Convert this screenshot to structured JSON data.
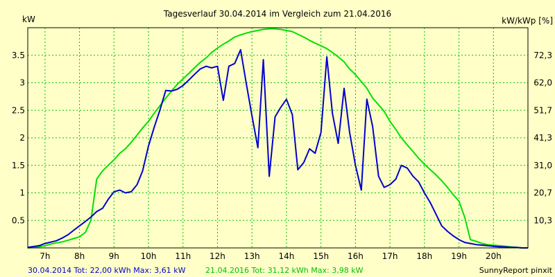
{
  "chart_data": {
    "type": "line",
    "title": "Tagesverlauf 30.04.2014 im Vergleich zum 21.04.2016",
    "ylabel_left": "kW",
    "ylabel_right": "kW/kWp [%]",
    "xlim": [
      6.5,
      21.0
    ],
    "ylim": [
      0,
      4.0
    ],
    "x_ticks": [
      7,
      8,
      9,
      10,
      11,
      12,
      13,
      14,
      15,
      16,
      17,
      18,
      19,
      20
    ],
    "x_tick_labels": [
      "7h",
      "8h",
      "9h",
      "10h",
      "11h",
      "12h",
      "13h",
      "14h",
      "15h",
      "16h",
      "17h",
      "18h",
      "19h",
      "20h"
    ],
    "y_ticks": [
      0.5,
      1,
      1.5,
      2,
      2.5,
      3,
      3.5
    ],
    "y_tick_labels": [
      "0.5",
      "1",
      "1.5",
      "2",
      "2.5",
      "3",
      "3.5"
    ],
    "y_right_ticks": [
      0.5,
      1,
      1.5,
      2,
      2.5,
      3,
      3.5
    ],
    "y_right_tick_labels": [
      "10,3",
      "20,7",
      "31,0",
      "41,3",
      "51,7",
      "62,0",
      "72,3"
    ],
    "grid": true,
    "series": [
      {
        "name": "30.04.2014",
        "color": "#0000CC",
        "x": [
          6.5,
          6.83,
          7.0,
          7.33,
          7.5,
          7.67,
          7.83,
          8.0,
          8.17,
          8.33,
          8.5,
          8.67,
          8.83,
          9.0,
          9.17,
          9.33,
          9.5,
          9.67,
          9.83,
          10.0,
          10.17,
          10.33,
          10.5,
          10.67,
          10.83,
          11.0,
          11.17,
          11.33,
          11.5,
          11.67,
          11.83,
          12.0,
          12.17,
          12.33,
          12.5,
          12.67,
          12.83,
          13.0,
          13.17,
          13.33,
          13.5,
          13.67,
          13.83,
          14.0,
          14.17,
          14.33,
          14.5,
          14.67,
          14.83,
          15.0,
          15.17,
          15.33,
          15.5,
          15.67,
          15.83,
          16.0,
          16.17,
          16.33,
          16.5,
          16.67,
          16.83,
          17.0,
          17.17,
          17.33,
          17.5,
          17.67,
          17.83,
          18.0,
          18.17,
          18.33,
          18.5,
          18.67,
          18.83,
          19.0,
          19.17,
          19.33,
          19.5,
          19.67,
          19.83,
          20.0,
          20.17,
          20.33,
          20.5,
          20.67,
          20.83,
          21.0
        ],
        "values": [
          0.01,
          0.04,
          0.08,
          0.13,
          0.18,
          0.24,
          0.32,
          0.4,
          0.48,
          0.56,
          0.66,
          0.72,
          0.88,
          1.02,
          1.05,
          1.0,
          1.02,
          1.15,
          1.4,
          1.85,
          2.2,
          2.5,
          2.86,
          2.85,
          2.88,
          2.95,
          3.05,
          3.15,
          3.25,
          3.3,
          3.27,
          3.3,
          2.68,
          3.3,
          3.35,
          3.6,
          3.0,
          2.4,
          1.82,
          3.42,
          1.3,
          2.38,
          2.55,
          2.7,
          2.42,
          1.42,
          1.55,
          1.8,
          1.72,
          2.1,
          3.47,
          2.45,
          1.9,
          2.9,
          2.1,
          1.5,
          1.05,
          2.7,
          2.2,
          1.3,
          1.1,
          1.15,
          1.25,
          1.5,
          1.45,
          1.3,
          1.2,
          1.0,
          0.82,
          0.62,
          0.4,
          0.3,
          0.22,
          0.15,
          0.1,
          0.08,
          0.06,
          0.05,
          0.04,
          0.03,
          0.02,
          0.02,
          0.01,
          0.01,
          0.0,
          0.0
        ]
      },
      {
        "name": "21.04.2016",
        "color": "#00E000",
        "x": [
          6.5,
          6.67,
          6.83,
          7.0,
          7.17,
          7.33,
          7.5,
          7.67,
          7.83,
          8.0,
          8.17,
          8.33,
          8.5,
          8.67,
          8.83,
          9.0,
          9.17,
          9.33,
          9.5,
          9.67,
          9.83,
          10.0,
          10.17,
          10.33,
          10.5,
          10.67,
          10.83,
          11.0,
          11.17,
          11.33,
          11.5,
          11.67,
          11.83,
          12.0,
          12.17,
          12.33,
          12.5,
          12.67,
          12.83,
          13.0,
          13.17,
          13.33,
          13.5,
          13.67,
          13.83,
          14.0,
          14.17,
          14.33,
          14.5,
          14.67,
          14.83,
          15.0,
          15.17,
          15.33,
          15.5,
          15.67,
          15.83,
          16.0,
          16.17,
          16.33,
          16.5,
          16.67,
          16.83,
          17.0,
          17.17,
          17.33,
          17.5,
          17.67,
          17.83,
          18.0,
          18.17,
          18.33,
          18.5,
          18.67,
          18.83,
          19.0,
          19.17,
          19.33,
          19.5,
          19.67,
          19.83,
          20.0,
          20.17,
          20.33,
          20.5,
          20.67,
          20.83,
          21.0
        ],
        "values": [
          0.0,
          0.01,
          0.02,
          0.04,
          0.07,
          0.09,
          0.11,
          0.14,
          0.17,
          0.2,
          0.28,
          0.5,
          1.25,
          1.4,
          1.5,
          1.6,
          1.72,
          1.8,
          1.92,
          2.05,
          2.18,
          2.3,
          2.45,
          2.58,
          2.72,
          2.85,
          2.97,
          3.07,
          3.17,
          3.27,
          3.37,
          3.45,
          3.55,
          3.63,
          3.7,
          3.76,
          3.83,
          3.87,
          3.9,
          3.93,
          3.95,
          3.97,
          3.98,
          3.98,
          3.97,
          3.95,
          3.93,
          3.88,
          3.83,
          3.77,
          3.72,
          3.67,
          3.62,
          3.55,
          3.47,
          3.38,
          3.25,
          3.15,
          3.02,
          2.9,
          2.72,
          2.6,
          2.48,
          2.3,
          2.15,
          2.0,
          1.87,
          1.75,
          1.63,
          1.52,
          1.42,
          1.33,
          1.22,
          1.1,
          0.97,
          0.85,
          0.55,
          0.15,
          0.12,
          0.08,
          0.06,
          0.05,
          0.04,
          0.03,
          0.02,
          0.01,
          0.0,
          0.0
        ]
      }
    ]
  },
  "footer": {
    "s1": "30.04.2014 Tot: 22,00 kWh Max: 3,61 kW",
    "s2": "21.04.2016 Tot: 31,12 kWh Max: 3,98 kW",
    "credit": "SunnyReport pinxit"
  }
}
